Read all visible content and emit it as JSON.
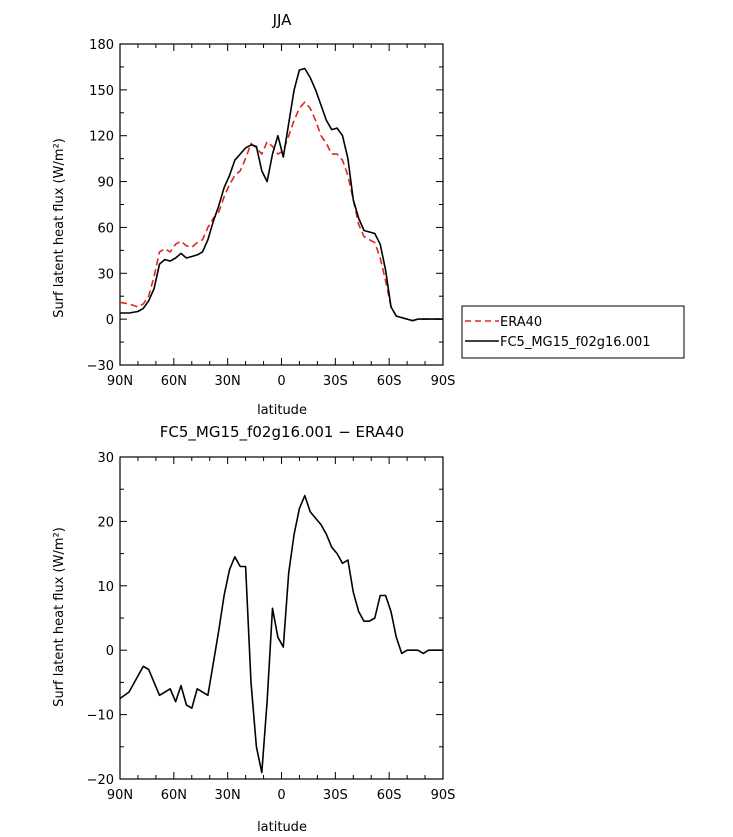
{
  "chart_data": [
    {
      "type": "line",
      "title": "JJA",
      "xlabel": "latitude",
      "ylabel": "Surf latent heat flux (W/m²)",
      "xlim": [
        -90,
        90
      ],
      "ylim": [
        -30,
        180
      ],
      "x_tick_labels": [
        "90N",
        "60N",
        "30N",
        "0",
        "30S",
        "60S",
        "90S"
      ],
      "x_ticks": [
        -90,
        -60,
        -30,
        0,
        30,
        60,
        90
      ],
      "y_ticks": [
        -30,
        0,
        30,
        60,
        90,
        120,
        150,
        180
      ],
      "y_tick_labels": [
        "−30",
        "0",
        "30",
        "60",
        "90",
        "120",
        "150",
        "180"
      ],
      "x": [
        -90,
        -85,
        -80,
        -77,
        -74,
        -71,
        -68,
        -65,
        -62,
        -59,
        -56,
        -53,
        -50,
        -47,
        -44,
        -41,
        -38,
        -35,
        -32,
        -29,
        -26,
        -23,
        -20,
        -17,
        -14,
        -11,
        -8,
        -5,
        -2,
        1,
        4,
        7,
        10,
        13,
        16,
        19,
        22,
        25,
        28,
        31,
        34,
        37,
        40,
        43,
        46,
        49,
        52,
        55,
        58,
        61,
        64,
        67,
        70,
        73,
        76,
        79,
        82,
        85,
        88,
        90
      ],
      "legend": {
        "placement": "right",
        "entries": [
          "ERA40",
          "FC5_MG15_f02g16.001"
        ]
      },
      "series": [
        {
          "name": "ERA40",
          "color": "#e0261c",
          "dash": "dashed",
          "values": [
            11,
            10,
            8,
            10,
            15,
            28,
            44,
            46,
            44,
            49,
            51,
            48,
            47,
            50,
            52,
            60,
            66,
            70,
            80,
            88,
            94,
            97,
            105,
            115,
            112,
            108,
            116,
            113,
            108,
            110,
            120,
            130,
            138,
            142,
            138,
            130,
            120,
            115,
            108,
            108,
            104,
            94,
            78,
            62,
            54,
            52,
            50,
            40,
            25,
            8,
            2,
            1,
            0,
            -1,
            0,
            0,
            0,
            0,
            0,
            0
          ]
        },
        {
          "name": "FC5_MG15_f02g16.001",
          "color": "#000000",
          "dash": "solid",
          "values": [
            4,
            4,
            5,
            7,
            12,
            20,
            36,
            39,
            38,
            40,
            43,
            40,
            41,
            42,
            44,
            52,
            64,
            74,
            86,
            94,
            104,
            108,
            112,
            114,
            113,
            97,
            90,
            108,
            120,
            106,
            128,
            150,
            163,
            164,
            158,
            150,
            140,
            130,
            124,
            125,
            120,
            105,
            78,
            66,
            58,
            57,
            56,
            49,
            32,
            8,
            2,
            1,
            0,
            -1,
            0,
            0,
            0,
            0,
            0,
            0
          ]
        }
      ]
    },
    {
      "type": "line",
      "title": "FC5_MG15_f02g16.001 − ERA40",
      "xlabel": "latitude",
      "ylabel": "Surf latent heat flux (W/m²)",
      "xlim": [
        -90,
        90
      ],
      "ylim": [
        -20,
        30
      ],
      "x_tick_labels": [
        "90N",
        "60N",
        "30N",
        "0",
        "30S",
        "60S",
        "90S"
      ],
      "x_ticks": [
        -90,
        -60,
        -30,
        0,
        30,
        60,
        90
      ],
      "y_ticks": [
        -20,
        -10,
        0,
        10,
        20,
        30
      ],
      "y_tick_labels": [
        "−20",
        "−10",
        "0",
        "10",
        "20",
        "30"
      ],
      "x": [
        -90,
        -85,
        -80,
        -77,
        -74,
        -71,
        -68,
        -65,
        -62,
        -59,
        -56,
        -53,
        -50,
        -47,
        -44,
        -41,
        -38,
        -35,
        -32,
        -29,
        -26,
        -23,
        -20,
        -17,
        -14,
        -11,
        -8,
        -5,
        -2,
        1,
        4,
        7,
        10,
        13,
        16,
        19,
        22,
        25,
        28,
        31,
        34,
        37,
        40,
        43,
        46,
        49,
        52,
        55,
        58,
        61,
        64,
        67,
        70,
        73,
        76,
        79,
        82,
        85,
        88,
        90
      ],
      "series": [
        {
          "color": "#000000",
          "dash": "solid",
          "values": [
            -7.5,
            -6.5,
            -4,
            -2.5,
            -3,
            -5,
            -7,
            -6.5,
            -6,
            -8,
            -5.5,
            -8.5,
            -9,
            -6,
            -6.5,
            -7,
            -2,
            3,
            8.5,
            12.5,
            14.5,
            13,
            13,
            -5,
            -15,
            -19,
            -8,
            6.5,
            2,
            0.5,
            12,
            18,
            22,
            24,
            21.5,
            20.5,
            19.5,
            18,
            16,
            15,
            13.5,
            14,
            9,
            6,
            4.5,
            4.5,
            5,
            8.5,
            8.5,
            6,
            2,
            -0.5,
            0,
            0,
            0,
            -0.5,
            0,
            0,
            0,
            0
          ]
        }
      ]
    }
  ]
}
